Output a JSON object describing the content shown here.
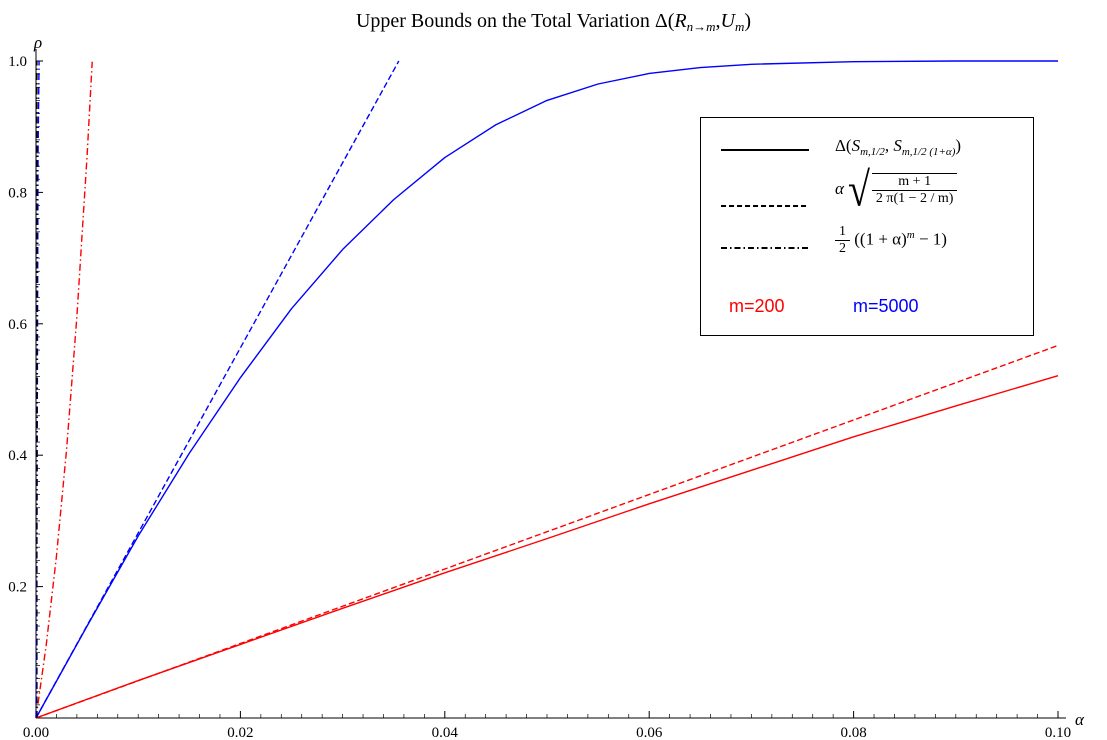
{
  "chart_data": {
    "type": "line",
    "title_prefix": "Upper Bounds on the Total Variation Δ(",
    "title_math_R": "R",
    "title_math_R_sub": "n→m",
    "title_math_U": "U",
    "title_math_U_sub": "m",
    "title_suffix": ")",
    "xlabel": "α",
    "ylabel": "ρ",
    "xlim": [
      0,
      0.1
    ],
    "ylim": [
      0,
      1.0
    ],
    "x_ticks": [
      "0.00",
      "0.02",
      "0.04",
      "0.06",
      "0.08",
      "0.10"
    ],
    "x_tick_values": [
      0,
      0.02,
      0.04,
      0.06,
      0.08,
      0.1
    ],
    "y_ticks": [
      "0.2",
      "0.4",
      "0.6",
      "0.8",
      "1.0"
    ],
    "y_tick_values": [
      0.2,
      0.4,
      0.6,
      0.8,
      1.0
    ],
    "colors": {
      "m200": "#ff0000",
      "m5000": "#0000ff",
      "legend": "#000000"
    },
    "series": [
      {
        "id": "m200-total-variation",
        "m": 200,
        "style": "solid",
        "color": "#ff0000",
        "x": [
          0,
          0.01,
          0.02,
          0.03,
          0.04,
          0.05,
          0.06,
          0.07,
          0.08,
          0.09,
          0.1
        ],
        "y": [
          0,
          0.057,
          0.112,
          0.167,
          0.221,
          0.273,
          0.326,
          0.377,
          0.428,
          0.475,
          0.521
        ]
      },
      {
        "id": "m200-sqrt-bound",
        "m": 200,
        "style": "dashed",
        "color": "#ff0000",
        "x": [
          0,
          0.1
        ],
        "y": [
          0,
          0.567
        ]
      },
      {
        "id": "m200-exp-bound",
        "m": 200,
        "style": "dashdot",
        "color": "#ff0000",
        "x": [
          0,
          0.001,
          0.002,
          0.003,
          0.004,
          0.005,
          0.0055
        ],
        "y": [
          0,
          0.111,
          0.246,
          0.41,
          0.611,
          0.856,
          0.999
        ]
      },
      {
        "id": "m5000-total-variation",
        "m": 5000,
        "style": "solid",
        "color": "#0000ff",
        "x": [
          0,
          0.005,
          0.01,
          0.015,
          0.02,
          0.025,
          0.03,
          0.035,
          0.04,
          0.045,
          0.05,
          0.055,
          0.06,
          0.065,
          0.07,
          0.08,
          0.09,
          0.1
        ],
        "y": [
          0,
          0.14,
          0.277,
          0.403,
          0.518,
          0.623,
          0.713,
          0.789,
          0.853,
          0.903,
          0.94,
          0.965,
          0.981,
          0.99,
          0.995,
          0.999,
          1.0,
          1.0
        ]
      },
      {
        "id": "m5000-sqrt-bound",
        "m": 5000,
        "style": "dashed",
        "color": "#0000ff",
        "x": [
          0,
          0.0355
        ],
        "y": [
          0,
          1.0
        ]
      },
      {
        "id": "m5000-exp-bound",
        "m": 5000,
        "style": "dashdot",
        "color": "#0000ff",
        "x": [
          0,
          0.0001,
          0.0002,
          0.0003
        ],
        "y": [
          0,
          0.324,
          0.859,
          1.0
        ]
      }
    ],
    "legend": {
      "position": "top-right",
      "entries": [
        {
          "style": "solid",
          "label_prefix": "Δ(",
          "S": "S",
          "sub1": "m,1/2",
          "sep": ", ",
          "sub2": "m,1/2 (1+α)",
          "label_suffix": ")"
        },
        {
          "style": "dashed",
          "alpha": "α",
          "numerator": "m + 1",
          "denominator": "2 π(1 − 2 / m)"
        },
        {
          "style": "dashdot",
          "half_num": "1",
          "half_den": "2",
          "expr": "((1 + α)",
          "exp": "m",
          "expr_tail": " − 1)"
        }
      ],
      "m_labels": [
        {
          "text": "m=200",
          "color": "#ff0000"
        },
        {
          "text": "m=5000",
          "color": "#0000ff"
        }
      ]
    }
  }
}
